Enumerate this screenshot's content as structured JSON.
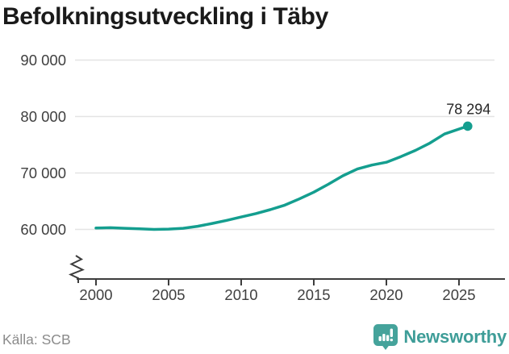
{
  "title": "Befolkningsutveckling i Täby",
  "footer": {
    "source": "Källa: SCB",
    "brand": "Newsworthy"
  },
  "icons": {
    "brand_logo": "newsworthy-speech-bubble-with-bar-chart-and-exclamation"
  },
  "colors": {
    "line": "#149e8f",
    "accent_icon": "#45a39b",
    "brand_text": "#3e9d98",
    "grid": "#e4e4e4",
    "axis": "#3d3d3d",
    "text": "#3f3f3f",
    "muted": "#8b8b8b",
    "title": "#1a1a1a"
  },
  "chart_data": {
    "type": "line",
    "title": "Befolkningsutveckling i Täby",
    "xlabel": "",
    "ylabel": "",
    "grid": "horizontal",
    "legend": "none",
    "y_axis_break": true,
    "xlim": [
      1998.6,
      2028.2
    ],
    "ylim": [
      60000,
      90000
    ],
    "x_ticks": [
      "2000",
      "2005",
      "2010",
      "2015",
      "2020",
      "2025"
    ],
    "y_ticks": [
      {
        "value": 60000,
        "label": "60 000"
      },
      {
        "value": 70000,
        "label": "70 000"
      },
      {
        "value": 80000,
        "label": "80 000"
      },
      {
        "value": 90000,
        "label": "90 000"
      }
    ],
    "end_label": "78 294",
    "series": [
      {
        "points": [
          [
            2000,
            60250
          ],
          [
            2001,
            60300
          ],
          [
            2002,
            60200
          ],
          [
            2003,
            60100
          ],
          [
            2004,
            60000
          ],
          [
            2005,
            60050
          ],
          [
            2006,
            60200
          ],
          [
            2007,
            60550
          ],
          [
            2008,
            61050
          ],
          [
            2009,
            61600
          ],
          [
            2010,
            62200
          ],
          [
            2011,
            62800
          ],
          [
            2012,
            63500
          ],
          [
            2013,
            64300
          ],
          [
            2014,
            65400
          ],
          [
            2015,
            66600
          ],
          [
            2016,
            68000
          ],
          [
            2017,
            69500
          ],
          [
            2018,
            70700
          ],
          [
            2019,
            71400
          ],
          [
            2020,
            71900
          ],
          [
            2021,
            72900
          ],
          [
            2022,
            74000
          ],
          [
            2023,
            75300
          ],
          [
            2024,
            76900
          ],
          [
            2025.6,
            78294
          ]
        ]
      }
    ]
  }
}
